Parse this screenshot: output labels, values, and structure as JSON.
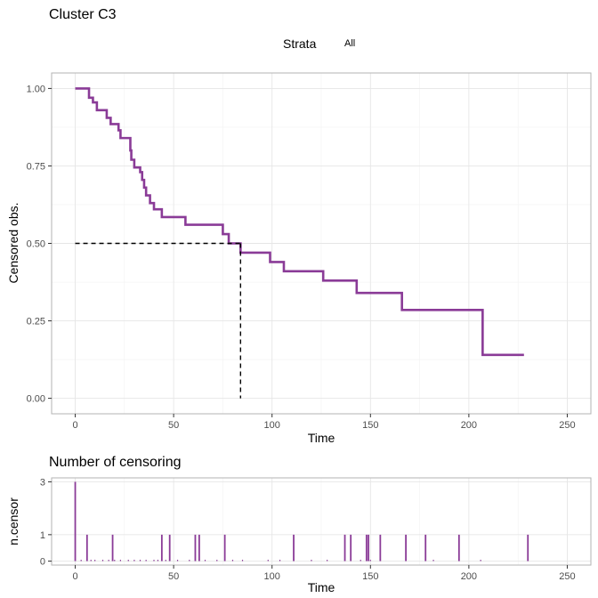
{
  "chart_data": [
    {
      "type": "line",
      "subtype": "step",
      "title": "Cluster C3",
      "legend": {
        "title": "Strata",
        "items": [
          "All"
        ],
        "position": "top"
      },
      "xlabel": "Time",
      "ylabel": "Censored obs.",
      "xlim": [
        -12,
        262
      ],
      "ylim": [
        -0.05,
        1.05
      ],
      "xticks": [
        0,
        50,
        100,
        150,
        200,
        250
      ],
      "yticks": [
        0,
        0.25,
        0.5,
        0.75,
        1
      ],
      "ytick_labels": [
        "0.00",
        "0.25",
        "0.50",
        "0.75",
        "1.00"
      ],
      "color": "#8a3b97",
      "series": [
        {
          "name": "All",
          "x": [
            0,
            7,
            9,
            11,
            12,
            16,
            18,
            22,
            23,
            28,
            28.5,
            29,
            30,
            33,
            34,
            35,
            36,
            38,
            40,
            44,
            56,
            75,
            78,
            84,
            99,
            106,
            126,
            143,
            166,
            207,
            228
          ],
          "y": [
            1.0,
            0.97,
            0.955,
            0.93,
            0.93,
            0.905,
            0.885,
            0.865,
            0.84,
            0.8,
            0.77,
            0.77,
            0.745,
            0.73,
            0.705,
            0.68,
            0.655,
            0.63,
            0.61,
            0.585,
            0.56,
            0.53,
            0.5,
            0.47,
            0.44,
            0.41,
            0.38,
            0.34,
            0.285,
            0.14,
            0.14
          ]
        }
      ],
      "median": {
        "time": 84,
        "survival": 0.5
      }
    },
    {
      "type": "bar",
      "title": "Number of censoring",
      "xlabel": "Time",
      "ylabel": "n.censor",
      "xlim": [
        -12,
        262
      ],
      "ylim": [
        -0.15,
        3.15
      ],
      "xticks": [
        0,
        50,
        100,
        150,
        200,
        250
      ],
      "yticks": [
        0,
        1,
        3
      ],
      "ytick_labels": [
        "0",
        "1",
        "3"
      ],
      "color": "#8a3b97",
      "x": [
        0,
        6,
        19,
        44,
        48,
        61,
        63,
        76,
        111,
        137,
        140,
        148,
        149,
        155,
        168,
        178,
        195,
        230
      ],
      "values": [
        3,
        1,
        1,
        1,
        1,
        1,
        1,
        1,
        1,
        1,
        1,
        1,
        1,
        1,
        1,
        1,
        1,
        1
      ],
      "zero_x": [
        3,
        8,
        10,
        14,
        17,
        20,
        23,
        27,
        30,
        33,
        36,
        40,
        42,
        46,
        52,
        58,
        66,
        72,
        80,
        85,
        98,
        104,
        120,
        128,
        145,
        150,
        182,
        206
      ]
    }
  ]
}
